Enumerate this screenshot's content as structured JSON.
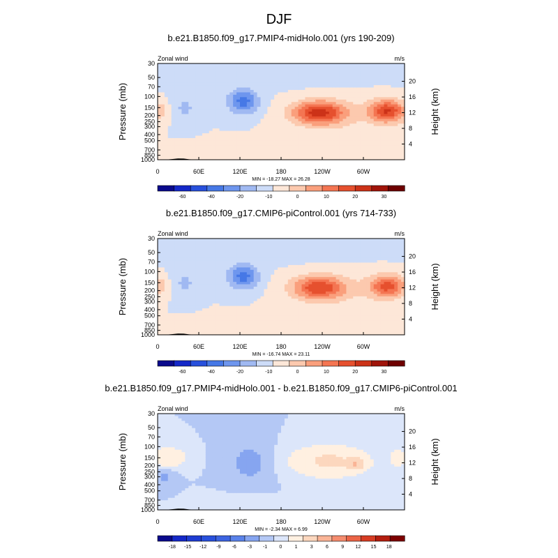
{
  "figure": {
    "title": "DJF"
  },
  "chart_data": [
    {
      "type": "heatmap",
      "title": "b.e21.B1850.f09_g17.PMIP4-midHolo.001 (yrs 190-209)",
      "left_label": "Zonal wind",
      "right_label": "m/s",
      "ylabel": "Pressure (mb)",
      "ylabel_right": "Height (km)",
      "x_ticks": [
        "0",
        "60E",
        "120E",
        "180",
        "120W",
        "60W"
      ],
      "y_ticks": [
        "30",
        "50",
        "70",
        "100",
        "150",
        "200",
        "250",
        "300",
        "400",
        "500",
        "700",
        "850",
        "1000"
      ],
      "y_right_ticks": [
        "4",
        "8",
        "12",
        "16",
        "20"
      ],
      "stats": "MIN = -18.27  MAX =  26.28",
      "colorbar_labels": [
        "-60",
        "-40",
        "-20",
        "-10",
        "0",
        "10",
        "20",
        "30"
      ],
      "colorbar_colors": [
        "#0a0a8c",
        "#1428c8",
        "#2850dc",
        "#4678e6",
        "#6e96ee",
        "#a0b9f2",
        "#cddcf8",
        "#fde7d8",
        "#fcc9ae",
        "#fa9f7c",
        "#f47552",
        "#e6502e",
        "#cc3218",
        "#a0140a",
        "#6e0000"
      ],
      "extrema": {
        "min": -18.27,
        "max": 26.28
      },
      "x_range": [
        0,
        360
      ],
      "ylim": [
        1000,
        30
      ],
      "y_scale": "log"
    },
    {
      "type": "heatmap",
      "title": "b.e21.B1850.f09_g17.CMIP6-piControl.001 (yrs 714-733)",
      "left_label": "Zonal wind",
      "right_label": "m/s",
      "ylabel": "Pressure (mb)",
      "ylabel_right": "Height (km)",
      "x_ticks": [
        "0",
        "60E",
        "120E",
        "180",
        "120W",
        "60W"
      ],
      "y_ticks": [
        "30",
        "50",
        "70",
        "100",
        "150",
        "200",
        "250",
        "300",
        "400",
        "500",
        "700",
        "850",
        "1000"
      ],
      "y_right_ticks": [
        "4",
        "8",
        "12",
        "16",
        "20"
      ],
      "stats": "MIN = -16.74  MAX =  23.11",
      "colorbar_labels": [
        "-60",
        "-40",
        "-20",
        "-10",
        "0",
        "10",
        "20",
        "30"
      ],
      "colorbar_colors": [
        "#0a0a8c",
        "#1428c8",
        "#2850dc",
        "#4678e6",
        "#6e96ee",
        "#a0b9f2",
        "#cddcf8",
        "#fde7d8",
        "#fcc9ae",
        "#fa9f7c",
        "#f47552",
        "#e6502e",
        "#cc3218",
        "#a0140a",
        "#6e0000"
      ],
      "extrema": {
        "min": -16.74,
        "max": 23.11
      },
      "x_range": [
        0,
        360
      ],
      "ylim": [
        1000,
        30
      ],
      "y_scale": "log"
    },
    {
      "type": "heatmap",
      "title": "b.e21.B1850.f09_g17.PMIP4-midHolo.001 - b.e21.B1850.f09_g17.CMIP6-piControl.001",
      "left_label": "Zonal wind",
      "right_label": "m/s",
      "ylabel": "Pressure (mb)",
      "ylabel_right": "Height (km)",
      "x_ticks": [
        "0",
        "60E",
        "120E",
        "180",
        "120W",
        "60W"
      ],
      "y_ticks": [
        "30",
        "50",
        "70",
        "100",
        "150",
        "200",
        "250",
        "300",
        "400",
        "500",
        "700",
        "850",
        "1000"
      ],
      "y_right_ticks": [
        "4",
        "8",
        "12",
        "16",
        "20"
      ],
      "stats": "MIN = -2.34  MAX =  6.99",
      "colorbar_labels": [
        "-18",
        "-15",
        "-12",
        "-9",
        "-6",
        "-3",
        "-1",
        "0",
        "1",
        "3",
        "6",
        "9",
        "12",
        "15",
        "18"
      ],
      "colorbar_colors": [
        "#0a0a8c",
        "#1428c8",
        "#1e3cd2",
        "#2850dc",
        "#3c64e1",
        "#5a82ea",
        "#86a5f0",
        "#b4c8f5",
        "#dce6fa",
        "#fff0e1",
        "#fcd7be",
        "#fab496",
        "#f58c6e",
        "#eb6446",
        "#d73c23",
        "#b41e0f",
        "#7d0000"
      ],
      "extrema": {
        "min": -2.34,
        "max": 6.99
      },
      "x_range": [
        0,
        360
      ],
      "ylim": [
        1000,
        30
      ],
      "y_scale": "log"
    }
  ]
}
